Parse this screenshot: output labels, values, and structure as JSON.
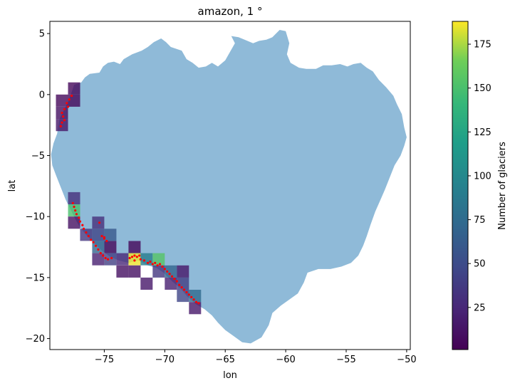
{
  "chart_data": {
    "type": "heatmap",
    "title": "amazon, 1 °",
    "xlabel": "lon",
    "ylabel": "lat",
    "xlim": [
      -79.5,
      -49.7
    ],
    "ylim": [
      -20.9,
      6.0
    ],
    "xticks": [
      -75,
      -70,
      -65,
      -60,
      -55,
      -50
    ],
    "yticks": [
      5,
      0,
      -5,
      -10,
      -15,
      -20
    ],
    "xtick_labels": [
      "−75",
      "−70",
      "−65",
      "−60",
      "−55",
      "−50"
    ],
    "ytick_labels": [
      "5",
      "0",
      "−5",
      "−10",
      "−15",
      "−20"
    ],
    "basin_color": "#8fbad8",
    "glacier_point_color": "#ff0000",
    "colormap": "viridis",
    "colorbar": {
      "label": "Number of glaciers",
      "vmin": 1,
      "vmax": 188,
      "ticks": [
        25,
        50,
        75,
        100,
        125,
        150,
        175
      ],
      "tick_labels": [
        "25",
        "50",
        "75",
        "100",
        "125",
        "150",
        "175"
      ]
    },
    "grid_cells": [
      {
        "lon": -78.5,
        "lat": -0.5,
        "count": 5
      },
      {
        "lon": -77.5,
        "lat": 0.5,
        "count": 5
      },
      {
        "lon": -77.5,
        "lat": -0.5,
        "count": 5
      },
      {
        "lon": -78.5,
        "lat": -1.5,
        "count": 10
      },
      {
        "lon": -78.5,
        "lat": -2.5,
        "count": 15
      },
      {
        "lon": -77.5,
        "lat": -8.5,
        "count": 30
      },
      {
        "lon": -77.5,
        "lat": -9.5,
        "count": 150
      },
      {
        "lon": -77.5,
        "lat": -10.5,
        "count": 10
      },
      {
        "lon": -76.5,
        "lat": -11.5,
        "count": 35
      },
      {
        "lon": -75.5,
        "lat": -10.5,
        "count": 30
      },
      {
        "lon": -75.5,
        "lat": -11.5,
        "count": 45
      },
      {
        "lon": -75.5,
        "lat": -12.5,
        "count": 70
      },
      {
        "lon": -74.5,
        "lat": -11.5,
        "count": 60
      },
      {
        "lon": -75.5,
        "lat": -13.5,
        "count": 20
      },
      {
        "lon": -74.5,
        "lat": -12.5,
        "count": 5
      },
      {
        "lon": -74.5,
        "lat": -13.5,
        "count": 40
      },
      {
        "lon": -73.5,
        "lat": -13.5,
        "count": 25
      },
      {
        "lon": -72.5,
        "lat": -12.5,
        "count": 5
      },
      {
        "lon": -72.5,
        "lat": -13.5,
        "count": 185
      },
      {
        "lon": -73.5,
        "lat": -14.5,
        "count": 10
      },
      {
        "lon": -72.5,
        "lat": -14.5,
        "count": 10
      },
      {
        "lon": -71.5,
        "lat": -13.5,
        "count": 90
      },
      {
        "lon": -70.5,
        "lat": -13.5,
        "count": 155
      },
      {
        "lon": -71.5,
        "lat": -15.5,
        "count": 15
      },
      {
        "lon": -70.5,
        "lat": -14.5,
        "count": 35
      },
      {
        "lon": -69.5,
        "lat": -14.5,
        "count": 70
      },
      {
        "lon": -69.5,
        "lat": -15.5,
        "count": 20
      },
      {
        "lon": -68.5,
        "lat": -14.5,
        "count": 15
      },
      {
        "lon": -68.5,
        "lat": -15.5,
        "count": 40
      },
      {
        "lon": -68.5,
        "lat": -16.5,
        "count": 45
      },
      {
        "lon": -67.5,
        "lat": -16.5,
        "count": 75
      },
      {
        "lon": -67.5,
        "lat": -17.5,
        "count": 15
      }
    ],
    "glacier_points": [
      [
        -77.7,
        -0.1
      ],
      [
        -77.9,
        -0.4
      ],
      [
        -78.1,
        -0.7
      ],
      [
        -78.0,
        -1.0
      ],
      [
        -78.3,
        -1.2
      ],
      [
        -78.5,
        -1.5
      ],
      [
        -78.4,
        -1.8
      ],
      [
        -78.3,
        -2.1
      ],
      [
        -78.5,
        -2.3
      ],
      [
        -78.6,
        -2.6
      ],
      [
        -77.6,
        -8.9
      ],
      [
        -77.5,
        -9.2
      ],
      [
        -77.4,
        -9.5
      ],
      [
        -77.3,
        -9.8
      ],
      [
        -77.1,
        -10.1
      ],
      [
        -77.0,
        -10.4
      ],
      [
        -76.8,
        -10.7
      ],
      [
        -76.7,
        -11.0
      ],
      [
        -76.5,
        -11.3
      ],
      [
        -76.3,
        -11.6
      ],
      [
        -76.1,
        -11.9
      ],
      [
        -75.9,
        -12.1
      ],
      [
        -75.7,
        -12.4
      ],
      [
        -75.5,
        -12.7
      ],
      [
        -75.3,
        -13.0
      ],
      [
        -75.1,
        -13.2
      ],
      [
        -74.9,
        -13.4
      ],
      [
        -75.2,
        -11.6
      ],
      [
        -75.0,
        -11.8
      ],
      [
        -74.8,
        -12.0
      ],
      [
        -75.4,
        -10.5
      ],
      [
        -75.0,
        -11.7
      ],
      [
        -74.7,
        -13.5
      ],
      [
        -74.4,
        -13.4
      ],
      [
        -72.9,
        -13.4
      ],
      [
        -72.7,
        -13.3
      ],
      [
        -72.5,
        -13.2
      ],
      [
        -72.3,
        -13.3
      ],
      [
        -72.1,
        -13.2
      ],
      [
        -72.5,
        -13.6
      ],
      [
        -72.0,
        -13.5
      ],
      [
        -71.7,
        -13.6
      ],
      [
        -71.4,
        -13.8
      ],
      [
        -71.2,
        -13.7
      ],
      [
        -71.0,
        -13.9
      ],
      [
        -70.8,
        -13.8
      ],
      [
        -70.6,
        -14.0
      ],
      [
        -70.4,
        -13.9
      ],
      [
        -70.2,
        -14.1
      ],
      [
        -70.0,
        -14.3
      ],
      [
        -69.8,
        -14.5
      ],
      [
        -69.6,
        -14.7
      ],
      [
        -69.4,
        -14.9
      ],
      [
        -69.2,
        -15.1
      ],
      [
        -69.0,
        -15.3
      ],
      [
        -68.8,
        -15.6
      ],
      [
        -68.6,
        -15.8
      ],
      [
        -68.4,
        -16.0
      ],
      [
        -68.2,
        -16.2
      ],
      [
        -68.0,
        -16.4
      ],
      [
        -67.8,
        -16.6
      ],
      [
        -67.6,
        -16.8
      ],
      [
        -67.4,
        -17.0
      ],
      [
        -67.2,
        -17.1
      ]
    ],
    "basin_outline": [
      [
        -78.7,
        -2.0
      ],
      [
        -77.9,
        -0.4
      ],
      [
        -77.5,
        0.8
      ],
      [
        -76.9,
        1.0
      ],
      [
        -76.6,
        1.4
      ],
      [
        -76.2,
        1.7
      ],
      [
        -75.4,
        1.8
      ],
      [
        -75.1,
        2.3
      ],
      [
        -74.7,
        2.6
      ],
      [
        -74.2,
        2.7
      ],
      [
        -73.7,
        2.5
      ],
      [
        -73.4,
        2.9
      ],
      [
        -72.7,
        3.3
      ],
      [
        -71.9,
        3.6
      ],
      [
        -71.4,
        3.9
      ],
      [
        -70.9,
        4.3
      ],
      [
        -70.3,
        4.6
      ],
      [
        -69.9,
        4.3
      ],
      [
        -69.5,
        3.9
      ],
      [
        -68.6,
        3.6
      ],
      [
        -68.2,
        2.9
      ],
      [
        -67.7,
        2.6
      ],
      [
        -67.2,
        2.2
      ],
      [
        -66.6,
        2.3
      ],
      [
        -66.1,
        2.6
      ],
      [
        -65.6,
        2.3
      ],
      [
        -65.0,
        2.8
      ],
      [
        -64.6,
        3.5
      ],
      [
        -64.2,
        4.2
      ],
      [
        -64.5,
        4.8
      ],
      [
        -63.9,
        4.7
      ],
      [
        -63.4,
        4.5
      ],
      [
        -62.7,
        4.2
      ],
      [
        -62.2,
        4.4
      ],
      [
        -61.6,
        4.5
      ],
      [
        -61.1,
        4.7
      ],
      [
        -60.5,
        5.3
      ],
      [
        -60.0,
        5.2
      ],
      [
        -59.7,
        4.2
      ],
      [
        -59.9,
        3.3
      ],
      [
        -59.6,
        2.6
      ],
      [
        -58.9,
        2.2
      ],
      [
        -58.3,
        2.1
      ],
      [
        -57.5,
        2.1
      ],
      [
        -56.9,
        2.4
      ],
      [
        -56.2,
        2.4
      ],
      [
        -55.5,
        2.5
      ],
      [
        -54.9,
        2.3
      ],
      [
        -54.4,
        2.5
      ],
      [
        -53.8,
        2.6
      ],
      [
        -53.3,
        2.2
      ],
      [
        -52.8,
        1.9
      ],
      [
        -52.3,
        1.2
      ],
      [
        -51.7,
        0.6
      ],
      [
        -51.1,
        -0.1
      ],
      [
        -50.8,
        -0.8
      ],
      [
        -50.4,
        -1.6
      ],
      [
        -50.2,
        -2.7
      ],
      [
        -50.0,
        -3.5
      ],
      [
        -50.2,
        -4.2
      ],
      [
        -50.5,
        -5.0
      ],
      [
        -51.0,
        -5.8
      ],
      [
        -51.4,
        -6.8
      ],
      [
        -51.8,
        -7.8
      ],
      [
        -52.2,
        -8.7
      ],
      [
        -52.6,
        -9.6
      ],
      [
        -53.0,
        -10.7
      ],
      [
        -53.3,
        -11.6
      ],
      [
        -53.6,
        -12.4
      ],
      [
        -54.0,
        -13.2
      ],
      [
        -54.6,
        -13.8
      ],
      [
        -55.4,
        -14.1
      ],
      [
        -56.3,
        -14.3
      ],
      [
        -57.3,
        -14.3
      ],
      [
        -58.2,
        -14.6
      ],
      [
        -58.5,
        -15.4
      ],
      [
        -59.0,
        -16.3
      ],
      [
        -59.7,
        -16.8
      ],
      [
        -60.4,
        -17.3
      ],
      [
        -61.1,
        -17.9
      ],
      [
        -61.4,
        -18.9
      ],
      [
        -62.0,
        -19.9
      ],
      [
        -62.9,
        -20.4
      ],
      [
        -63.6,
        -20.3
      ],
      [
        -64.3,
        -19.8
      ],
      [
        -65.0,
        -19.3
      ],
      [
        -65.6,
        -18.7
      ],
      [
        -66.1,
        -18.1
      ],
      [
        -66.7,
        -17.6
      ],
      [
        -67.4,
        -17.2
      ],
      [
        -68.1,
        -16.6
      ],
      [
        -68.7,
        -15.9
      ],
      [
        -69.4,
        -15.3
      ],
      [
        -70.1,
        -14.6
      ],
      [
        -70.7,
        -14.2
      ],
      [
        -71.4,
        -14.0
      ],
      [
        -72.2,
        -13.6
      ],
      [
        -73.0,
        -13.8
      ],
      [
        -73.8,
        -13.6
      ],
      [
        -74.5,
        -13.3
      ],
      [
        -75.2,
        -12.8
      ],
      [
        -75.9,
        -12.1
      ],
      [
        -76.5,
        -11.5
      ],
      [
        -77.0,
        -10.9
      ],
      [
        -77.4,
        -10.2
      ],
      [
        -77.8,
        -9.4
      ],
      [
        -78.2,
        -8.6
      ],
      [
        -78.6,
        -7.6
      ],
      [
        -79.0,
        -6.6
      ],
      [
        -79.3,
        -5.8
      ],
      [
        -79.4,
        -4.9
      ],
      [
        -79.2,
        -4.0
      ],
      [
        -78.9,
        -3.2
      ]
    ]
  }
}
